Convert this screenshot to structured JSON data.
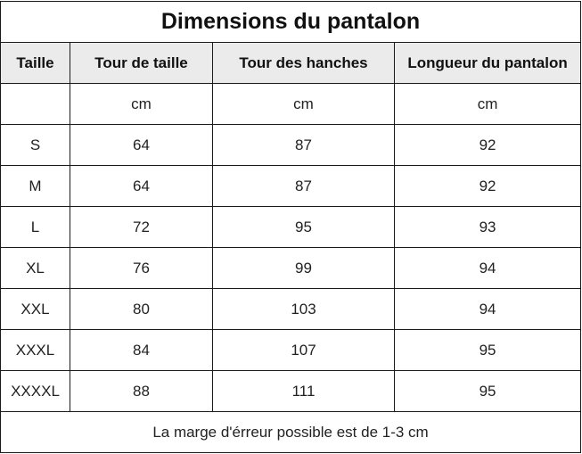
{
  "title": "Dimensions du pantalon",
  "columns": [
    "Taille",
    "Tour de taille",
    "Tour des hanches",
    "Longueur du pantalon"
  ],
  "units": [
    "",
    "cm",
    "cm",
    "cm"
  ],
  "rows": [
    [
      "S",
      "64",
      "87",
      "92"
    ],
    [
      "M",
      "64",
      "87",
      "92"
    ],
    [
      "L",
      "72",
      "95",
      "93"
    ],
    [
      "XL",
      "76",
      "99",
      "94"
    ],
    [
      "XXL",
      "80",
      "103",
      "94"
    ],
    [
      "XXXL",
      "84",
      "107",
      "95"
    ],
    [
      "XXXXL",
      "88",
      "111",
      "95"
    ]
  ],
  "footer": "La marge d'érreur possible est de 1-3 cm",
  "colors": {
    "header_bg": "#ebebeb",
    "border": "#1a1a1a",
    "text": "#222222"
  }
}
